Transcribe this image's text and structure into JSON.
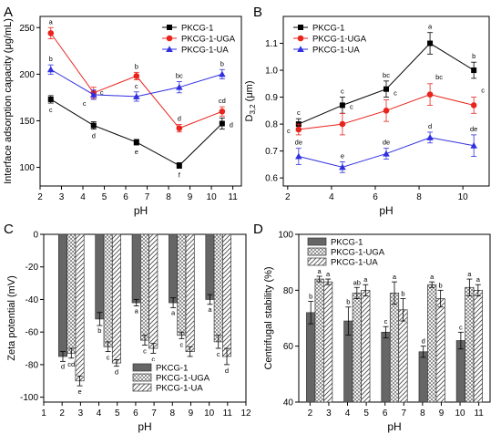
{
  "chart_data": [
    {
      "panel": "A",
      "type": "line",
      "xlabel": "pH",
      "ylabel": "Interface adsorption capacity (μg/mL)",
      "xlim": [
        2,
        11.4
      ],
      "ylim": [
        80,
        262
      ],
      "xticks": [
        2,
        3,
        4,
        5,
        6,
        7,
        8,
        9,
        10,
        11
      ],
      "yticks": [
        100,
        150,
        200,
        250
      ],
      "grid": false,
      "legend": "top-right",
      "x": [
        2.5,
        4.5,
        6.5,
        8.5,
        10.5
      ],
      "series": [
        {
          "name": "PKCG-1",
          "color": "#000000",
          "marker": "square",
          "values": [
            173,
            145,
            127,
            102,
            147
          ],
          "errors": [
            4,
            4,
            3,
            3,
            6
          ],
          "letters": [
            "c",
            "d",
            "e",
            "f",
            "d"
          ]
        },
        {
          "name": "PKCG-1-UGA",
          "color": "#e8241c",
          "marker": "circle",
          "values": [
            244,
            180,
            198,
            142,
            160
          ],
          "errors": [
            6,
            6,
            4,
            4,
            5
          ],
          "letters": [
            "a",
            "c",
            "b",
            "d",
            "cd"
          ]
        },
        {
          "name": "PKCG-1-UA",
          "color": "#2f2fe0",
          "marker": "triangle",
          "values": [
            205,
            178,
            176,
            186,
            200
          ],
          "errors": [
            5,
            5,
            5,
            6,
            5
          ],
          "letters": [
            "b",
            "c",
            "c",
            "bc",
            "b"
          ]
        }
      ]
    },
    {
      "panel": "B",
      "type": "line",
      "xlabel": "pH",
      "ylabel": "D3,2 (μm)",
      "xlim": [
        1.8,
        11.2
      ],
      "ylim": [
        0.57,
        1.2
      ],
      "xticks": [
        2,
        4,
        6,
        8,
        10
      ],
      "yticks": [
        0.6,
        0.7,
        0.8,
        0.9,
        1.0,
        1.1
      ],
      "grid": false,
      "legend": "top-left",
      "x": [
        2.5,
        4.5,
        6.5,
        8.5,
        10.5
      ],
      "series": [
        {
          "name": "PKCG-1",
          "color": "#000000",
          "marker": "square",
          "values": [
            0.8,
            0.87,
            0.93,
            1.1,
            1.0
          ],
          "errors": [
            0.02,
            0.03,
            0.03,
            0.04,
            0.03
          ],
          "letters": [
            "c",
            "c",
            "bc",
            "a",
            "b"
          ]
        },
        {
          "name": "PKCG-1-UGA",
          "color": "#e8241c",
          "marker": "circle",
          "values": [
            0.78,
            0.8,
            0.85,
            0.91,
            0.87
          ],
          "errors": [
            0.02,
            0.04,
            0.04,
            0.04,
            0.03
          ],
          "letters": [
            "c",
            "c",
            "c",
            "bc",
            "c"
          ]
        },
        {
          "name": "PKCG-1-UA",
          "color": "#2f2fe0",
          "marker": "triangle",
          "values": [
            0.68,
            0.64,
            0.69,
            0.75,
            0.72
          ],
          "errors": [
            0.03,
            0.02,
            0.02,
            0.02,
            0.04
          ],
          "letters": [
            "de",
            "e",
            "de",
            "d",
            "de"
          ]
        }
      ]
    },
    {
      "panel": "C",
      "type": "bar",
      "xlabel": "pH",
      "ylabel": "Zeta potential (mV)",
      "xlim": [
        1,
        12
      ],
      "ylim": [
        -103,
        0
      ],
      "xticks": [
        1,
        2,
        3,
        4,
        5,
        6,
        7,
        8,
        9,
        10,
        11,
        12
      ],
      "yticks": [
        0,
        -20,
        -40,
        -60,
        -80,
        -100
      ],
      "grid": false,
      "legend": "bottom-center",
      "group_centers": [
        2.5,
        4.5,
        6.5,
        8.5,
        10.5
      ],
      "series": [
        {
          "name": "PKCG-1",
          "fill": "#666666",
          "pattern": "solid",
          "values": [
            -75,
            -52,
            -42,
            -42,
            -40
          ],
          "errors": [
            3,
            4,
            2,
            3,
            3
          ],
          "letters": [
            "d",
            "b",
            "a",
            "a",
            "a"
          ]
        },
        {
          "name": "PKCG-1-UGA",
          "fill": "#ffffff",
          "pattern": "crosshatch",
          "values": [
            -73,
            -69,
            -65,
            -62,
            -66
          ],
          "errors": [
            3,
            3,
            3,
            2,
            4
          ],
          "letters": [
            "cd",
            "c",
            "c",
            "c",
            "c"
          ]
        },
        {
          "name": "PKCG-1-UA",
          "fill": "#ffffff",
          "pattern": "diagonal",
          "values": [
            -90,
            -79,
            -70,
            -72,
            -75
          ],
          "errors": [
            3,
            2,
            3,
            3,
            5
          ],
          "letters": [
            "e",
            "d",
            "c",
            "c",
            "d"
          ]
        }
      ]
    },
    {
      "panel": "D",
      "type": "bar",
      "xlabel": "pH",
      "ylabel": "Centrifugal stability (%)",
      "xlim": [
        1.4,
        11.6
      ],
      "ylim": [
        40,
        100
      ],
      "xticks": [
        2,
        3,
        4,
        5,
        6,
        7,
        8,
        9,
        10,
        11
      ],
      "yticks": [
        40,
        60,
        80,
        100
      ],
      "grid": false,
      "legend": "top-left",
      "group_centers": [
        2.5,
        4.5,
        6.5,
        8.5,
        10.5
      ],
      "series": [
        {
          "name": "PKCG-1",
          "fill": "#666666",
          "pattern": "solid",
          "values": [
            72,
            69,
            65,
            58,
            62
          ],
          "errors": [
            4,
            5,
            2,
            2,
            3
          ],
          "letters": [
            "b",
            "b",
            "c",
            "d",
            "c"
          ]
        },
        {
          "name": "PKCG-1-UGA",
          "fill": "#ffffff",
          "pattern": "crosshatch",
          "values": [
            84,
            79,
            79,
            82,
            81
          ],
          "errors": [
            1,
            2,
            4,
            1,
            3
          ],
          "letters": [
            "a",
            "ab",
            "a",
            "a",
            "a"
          ]
        },
        {
          "name": "PKCG-1-UA",
          "fill": "#ffffff",
          "pattern": "diagonal",
          "values": [
            83,
            80,
            73,
            77,
            80
          ],
          "errors": [
            1,
            2,
            4,
            3,
            2
          ],
          "letters": [
            "a",
            "a",
            "b",
            "b",
            "a"
          ]
        }
      ]
    }
  ]
}
